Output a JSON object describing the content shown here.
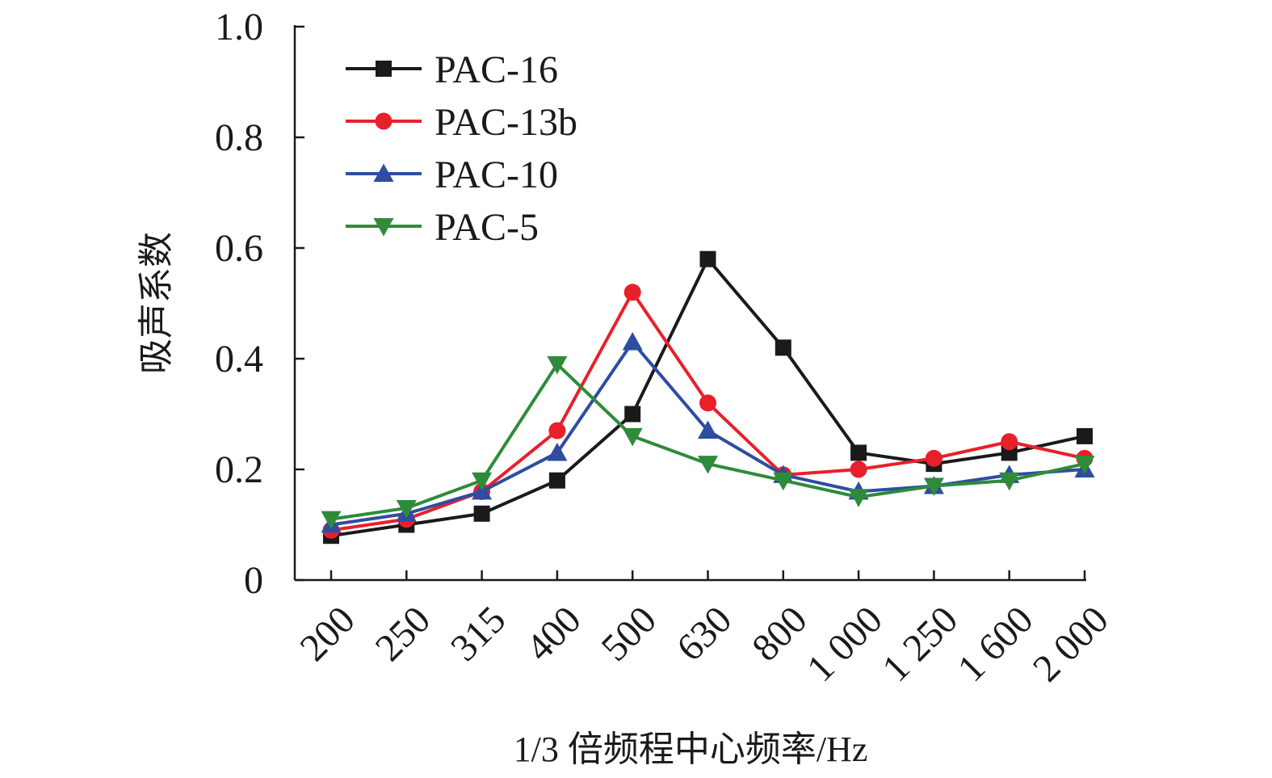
{
  "chart_data": {
    "type": "line",
    "title": "",
    "xlabel": "1/3 倍频程中心频率/Hz",
    "ylabel": "吸声系数",
    "categories": [
      "200",
      "250",
      "315",
      "400",
      "500",
      "630",
      "800",
      "1 000",
      "1 250",
      "1 600",
      "2 000"
    ],
    "ylim": [
      0,
      1.0
    ],
    "yticks": [
      "0",
      "0.2",
      "0.4",
      "0.6",
      "0.8",
      "1.0"
    ],
    "ytick_values": [
      0,
      0.2,
      0.4,
      0.6,
      0.8,
      1.0
    ],
    "grid": false,
    "legend_position": "top-left",
    "series": [
      {
        "name": "PAC-16",
        "color": "#1a1a1a",
        "marker": "square",
        "values": [
          0.08,
          0.1,
          0.12,
          0.18,
          0.3,
          0.58,
          0.42,
          0.23,
          0.21,
          0.23,
          0.26
        ]
      },
      {
        "name": "PAC-13b",
        "color": "#e8202a",
        "marker": "circle",
        "values": [
          0.09,
          0.11,
          0.16,
          0.27,
          0.52,
          0.32,
          0.19,
          0.2,
          0.22,
          0.25,
          0.22
        ]
      },
      {
        "name": "PAC-10",
        "color": "#2e4da0",
        "marker": "triangle-up",
        "values": [
          0.1,
          0.12,
          0.16,
          0.23,
          0.43,
          0.27,
          0.19,
          0.16,
          0.17,
          0.19,
          0.2
        ]
      },
      {
        "name": "PAC-5",
        "color": "#2e8b3a",
        "marker": "triangle-down",
        "values": [
          0.11,
          0.13,
          0.18,
          0.39,
          0.26,
          0.21,
          0.18,
          0.15,
          0.17,
          0.18,
          0.21
        ]
      }
    ]
  }
}
